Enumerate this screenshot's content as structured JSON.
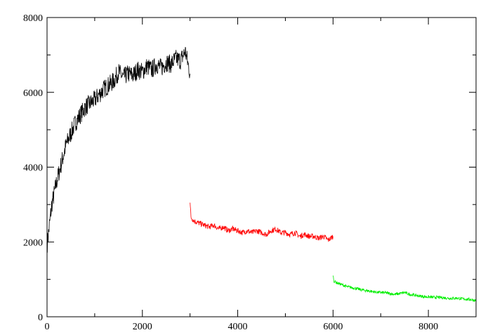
{
  "chart_data": {
    "type": "line",
    "title": "",
    "xlabel": "",
    "ylabel": "",
    "xlim": [
      0,
      9000
    ],
    "ylim": [
      0,
      8000
    ],
    "xticks": [
      0,
      2000,
      4000,
      6000,
      8000
    ],
    "yticks": [
      0,
      2000,
      4000,
      6000,
      8000
    ],
    "xtick_labels": [
      "0",
      "2000",
      "4000",
      "6000",
      "8000"
    ],
    "ytick_labels": [
      "0",
      "2000",
      "4000",
      "6000",
      "8000"
    ],
    "grid": false,
    "series": [
      {
        "color": "#000000",
        "x": [
          0,
          100,
          200,
          300,
          400,
          500,
          600,
          700,
          800,
          900,
          1000,
          1100,
          1200,
          1300,
          1400,
          1500,
          1600,
          1700,
          1800,
          1900,
          2000,
          2100,
          2200,
          2300,
          2400,
          2500,
          2600,
          2700,
          2800,
          2900,
          3000
        ],
        "y": [
          1900,
          3000,
          3600,
          4100,
          4600,
          4900,
          5200,
          5400,
          5600,
          5700,
          5800,
          5950,
          6100,
          6200,
          6300,
          6550,
          6400,
          6500,
          6450,
          6600,
          6550,
          6700,
          6600,
          6750,
          6650,
          6800,
          6750,
          6900,
          6850,
          7100,
          6500
        ]
      },
      {
        "color": "#ff0000",
        "x": [
          3000,
          3020,
          3100,
          3200,
          3300,
          3400,
          3500,
          3600,
          3700,
          3800,
          3900,
          4000,
          4100,
          4200,
          4300,
          4400,
          4500,
          4600,
          4700,
          4800,
          4900,
          5000,
          5100,
          5200,
          5300,
          5400,
          5500,
          5600,
          5700,
          5800,
          5900,
          6000
        ],
        "y": [
          3050,
          2650,
          2550,
          2500,
          2450,
          2400,
          2450,
          2350,
          2400,
          2300,
          2350,
          2300,
          2250,
          2300,
          2250,
          2300,
          2250,
          2200,
          2300,
          2350,
          2250,
          2250,
          2200,
          2250,
          2150,
          2200,
          2150,
          2150,
          2100,
          2150,
          2050,
          2150
        ]
      },
      {
        "color": "#00ee00",
        "x": [
          6000,
          6020,
          6100,
          6200,
          6300,
          6400,
          6500,
          6600,
          6700,
          6800,
          6900,
          7000,
          7100,
          7200,
          7300,
          7400,
          7500,
          7600,
          7700,
          7800,
          7900,
          8000,
          8100,
          8200,
          8300,
          8400,
          8500,
          8600,
          8700,
          8800,
          8900,
          9000
        ],
        "y": [
          1100,
          950,
          900,
          850,
          800,
          780,
          750,
          720,
          700,
          680,
          660,
          650,
          640,
          620,
          600,
          620,
          650,
          600,
          580,
          560,
          540,
          530,
          520,
          520,
          510,
          500,
          490,
          500,
          480,
          470,
          460,
          430
        ]
      }
    ]
  }
}
